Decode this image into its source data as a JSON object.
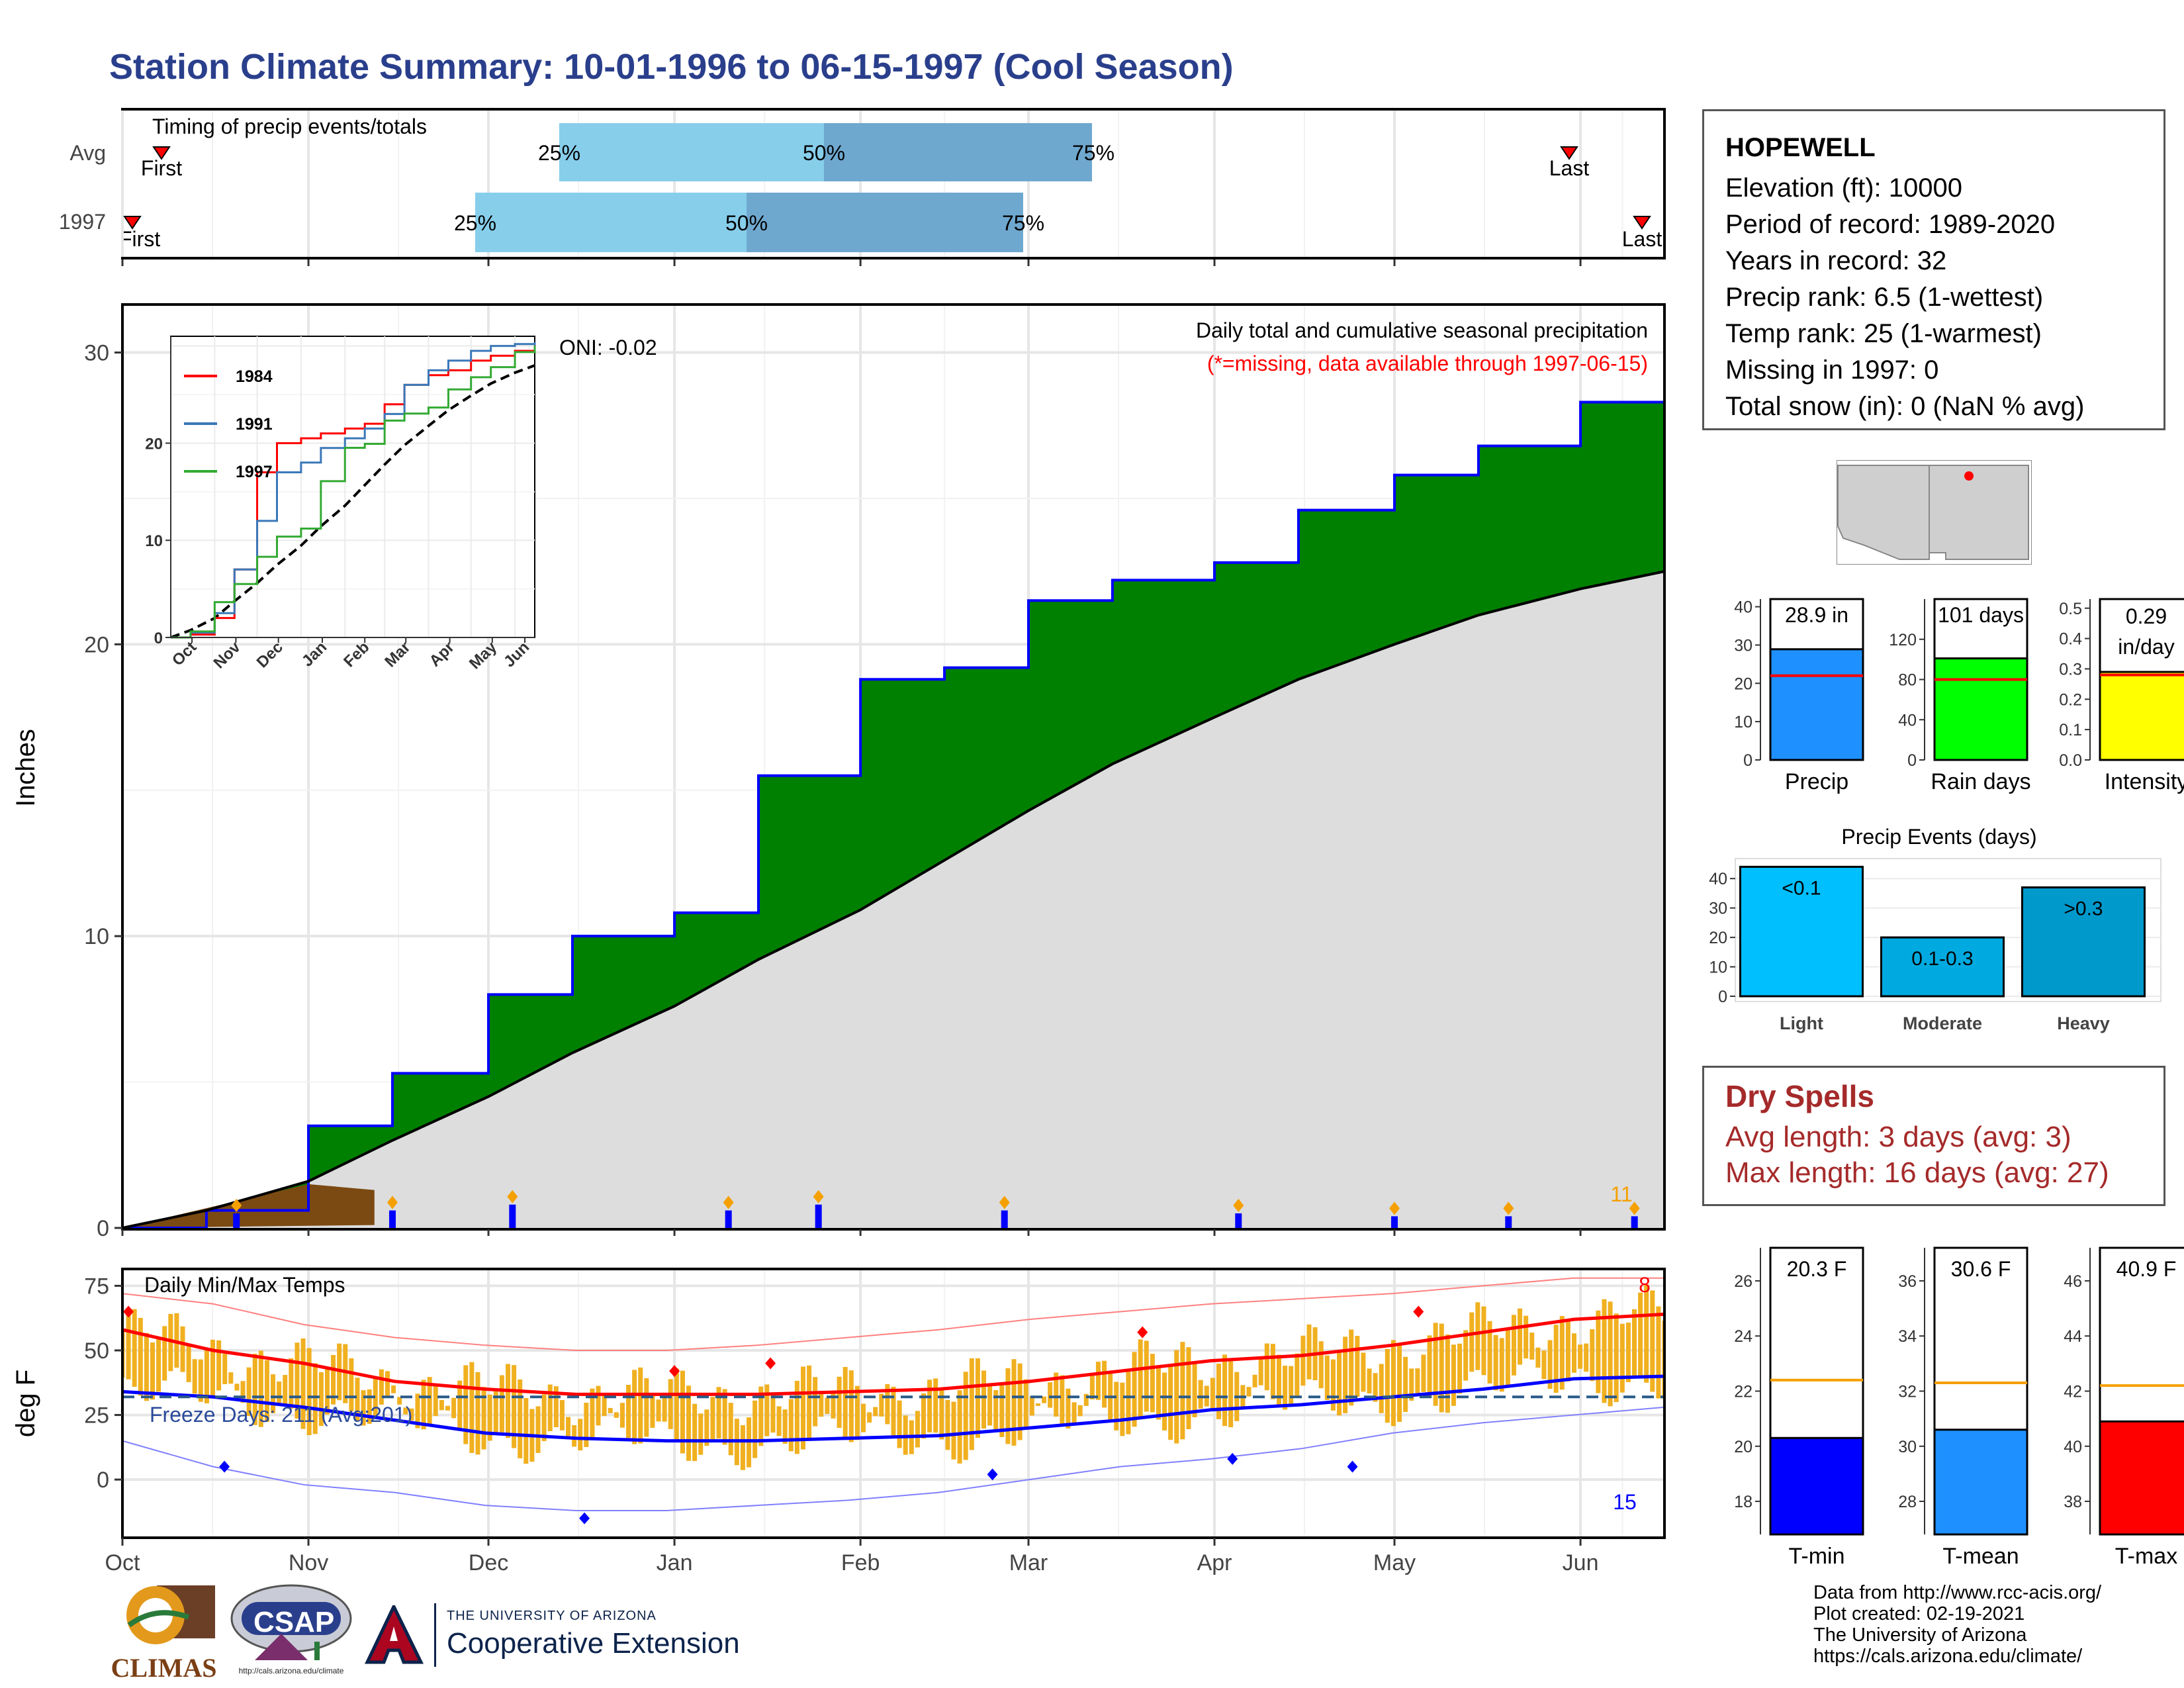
{
  "title": "Station Climate Summary: 10-01-1996 to 06-15-1997 (Cool Season)",
  "colors": {
    "title": "#2A3F8C",
    "green": "#008000",
    "brown": "#7B4A12",
    "blue": "#0000FF",
    "gray_fill": "#DDDDDD",
    "orange": "#F5A000",
    "red": "#FF0000",
    "dryspell": "#A52A2A"
  },
  "timing": {
    "label": "Timing of precip events/totals",
    "rows": [
      {
        "name": "Avg",
        "pct25": "25%",
        "pct50": "50%",
        "pct75": "75%",
        "first": "First",
        "last": "Last"
      },
      {
        "name": "1997",
        "pct25": "25%",
        "pct50": "50%",
        "pct75": "75%",
        "first": "First",
        "last": "Last"
      }
    ]
  },
  "precip_panel": {
    "caption": "Daily total and cumulative seasonal precipitation",
    "missing_note": "(*=missing, data available through 1997-06-15)",
    "ylabel": "Inches",
    "yticks": [
      "0",
      "10",
      "20",
      "30"
    ],
    "oni": "ONI: -0.02",
    "corner_count": "11"
  },
  "inset": {
    "legend": [
      "1984",
      "1991",
      "1997"
    ],
    "yticks": [
      "0",
      "10",
      "20"
    ],
    "xticks": [
      "Oct",
      "Nov",
      "Dec",
      "Jan",
      "Feb",
      "Mar",
      "Apr",
      "May",
      "Jun"
    ]
  },
  "temp_panel": {
    "title": "Daily Min/Max Temps",
    "ylabel": "deg F",
    "yticks": [
      "0",
      "25",
      "50",
      "75"
    ],
    "freeze": "Freeze Days: 211 (Avg:201)",
    "max_count": "8",
    "min_count": "15"
  },
  "xaxis_months": [
    "Oct",
    "Nov",
    "Dec",
    "Jan",
    "Feb",
    "Mar",
    "Apr",
    "May",
    "Jun"
  ],
  "station": {
    "name": "HOPEWELL",
    "lines": [
      "Elevation (ft): 10000",
      "Period of record: 1989-2020",
      "Years in record: 32",
      "Precip rank: 6.5 (1-wettest)",
      "Temp rank: 25 (1-warmest)",
      "Missing in 1997: 0",
      "Total snow (in): 0 (NaN % avg)"
    ]
  },
  "mini_bars": [
    {
      "label": "Precip",
      "value_text": "28.9 in",
      "yticks": [
        "0",
        "10",
        "20",
        "30",
        "40"
      ],
      "color": "#1E90FF"
    },
    {
      "label": "Rain days",
      "value_text": "101 days",
      "yticks": [
        "0",
        "40",
        "80",
        "120"
      ],
      "color": "#00FF00"
    },
    {
      "label": "Intensity",
      "value_text_1": "0.29",
      "value_text_2": "in/day",
      "yticks": [
        "0.0",
        "0.1",
        "0.2",
        "0.3",
        "0.4",
        "0.5"
      ],
      "color": "#FFFF00"
    }
  ],
  "precip_events": {
    "title": "Precip Events (days)",
    "yticks": [
      "0",
      "10",
      "20",
      "30",
      "40"
    ],
    "categories": [
      "Light",
      "Moderate",
      "Heavy"
    ],
    "bar_labels": [
      "<0.1",
      "0.1-0.3",
      ">0.3"
    ]
  },
  "dry_spells": {
    "title": "Dry Spells",
    "avg": "Avg length: 3 days (avg: 3)",
    "max": "Max length: 16 days (avg: 27)"
  },
  "temp_bars": [
    {
      "label": "T-min",
      "value_text": "20.3 F",
      "yticks": [
        "18",
        "20",
        "22",
        "24",
        "26"
      ],
      "color": "#0000FF"
    },
    {
      "label": "T-mean",
      "value_text": "30.6 F",
      "yticks": [
        "28",
        "30",
        "32",
        "34",
        "36"
      ],
      "color": "#1E90FF"
    },
    {
      "label": "T-max",
      "value_text": "40.9 F",
      "yticks": [
        "38",
        "40",
        "42",
        "44",
        "46"
      ],
      "color": "#FF0000"
    }
  ],
  "footer": {
    "lines": [
      "Data from http://www.rcc-acis.org/",
      "Plot created: 02-19-2021",
      "The University of Arizona",
      "https://cals.arizona.edu/climate/"
    ],
    "logo_climas": "CLIMAS",
    "logo_csap": "CSAP",
    "logo_csap_url": "http://cals.arizona.edu/climate",
    "ua_small": "THE UNIVERSITY OF ARIZONA",
    "ua_big": "Cooperative Extension"
  },
  "chart_data": [
    {
      "type": "area",
      "name": "cumulative_precip",
      "x_dates": [
        "1996-10-01",
        "1996-10-15",
        "1996-11-01",
        "1996-11-15",
        "1996-12-01",
        "1996-12-15",
        "1997-01-01",
        "1997-01-15",
        "1997-02-01",
        "1997-02-15",
        "1997-03-01",
        "1997-03-15",
        "1997-04-01",
        "1997-04-15",
        "1997-05-01",
        "1997-05-15",
        "1997-06-01",
        "1997-06-15"
      ],
      "series": [
        {
          "name": "1997",
          "values": [
            0,
            0.6,
            3.5,
            5.3,
            8.0,
            10.0,
            10.8,
            15.5,
            18.8,
            19.2,
            21.5,
            22.2,
            22.8,
            24.6,
            25.8,
            26.8,
            28.3,
            28.9
          ]
        },
        {
          "name": "Avg",
          "values": [
            0,
            0.6,
            1.6,
            3.0,
            4.5,
            6.0,
            7.6,
            9.2,
            10.9,
            12.6,
            14.3,
            15.9,
            17.5,
            18.8,
            20.0,
            21.0,
            21.9,
            22.5
          ]
        }
      ],
      "ylim": [
        0,
        31
      ]
    },
    {
      "type": "bar",
      "name": "daily_precip",
      "x_dates": [
        "1996-10-20",
        "1996-11-15",
        "1996-12-05",
        "1997-01-10",
        "1997-01-25",
        "1997-02-25",
        "1997-04-05",
        "1997-05-01",
        "1997-05-20",
        "1997-06-10"
      ],
      "values": [
        0.5,
        0.6,
        0.8,
        0.6,
        0.8,
        0.6,
        0.5,
        0.4,
        0.4,
        0.4
      ]
    },
    {
      "type": "line",
      "name": "daily_temps",
      "x_dates": [
        "1996-10-01",
        "1996-10-15",
        "1996-11-01",
        "1996-11-15",
        "1996-12-01",
        "1996-12-15",
        "1997-01-01",
        "1997-01-15",
        "1997-02-01",
        "1997-02-15",
        "1997-03-01",
        "1997-03-15",
        "1997-04-01",
        "1997-04-15",
        "1997-05-01",
        "1997-05-15",
        "1997-06-01",
        "1997-06-15"
      ],
      "series": [
        {
          "name": "avg_max",
          "values": [
            58,
            50,
            45,
            38,
            35,
            33,
            33,
            33,
            34,
            35,
            38,
            42,
            46,
            48,
            52,
            57,
            62,
            64
          ]
        },
        {
          "name": "avg_min",
          "values": [
            34,
            32,
            28,
            23,
            18,
            16,
            15,
            15,
            16,
            17,
            20,
            23,
            27,
            29,
            32,
            35,
            39,
            40
          ]
        },
        {
          "name": "record_max",
          "values": [
            72,
            68,
            60,
            55,
            52,
            50,
            50,
            52,
            55,
            58,
            62,
            65,
            68,
            70,
            72,
            75,
            78,
            78
          ]
        },
        {
          "name": "record_min",
          "values": [
            15,
            5,
            -2,
            -5,
            -10,
            -12,
            -12,
            -10,
            -8,
            -5,
            0,
            5,
            8,
            12,
            18,
            22,
            25,
            28
          ]
        }
      ],
      "freeze_line": 32,
      "ylim": [
        -22,
        80
      ]
    },
    {
      "type": "bar",
      "name": "station_totals",
      "categories": [
        "Precip",
        "Rain days",
        "Intensity"
      ],
      "values": [
        28.9,
        101,
        0.29
      ],
      "averages": [
        22,
        80,
        0.28
      ]
    },
    {
      "type": "bar",
      "name": "precip_events",
      "categories": [
        "Light",
        "Moderate",
        "Heavy"
      ],
      "values": [
        44,
        20,
        37
      ],
      "ylim": [
        0,
        45
      ]
    },
    {
      "type": "bar",
      "name": "temperature_summary",
      "categories": [
        "T-min",
        "T-mean",
        "T-max"
      ],
      "values": [
        20.3,
        30.6,
        40.9
      ],
      "averages": [
        22.4,
        32.3,
        42.2
      ]
    }
  ]
}
